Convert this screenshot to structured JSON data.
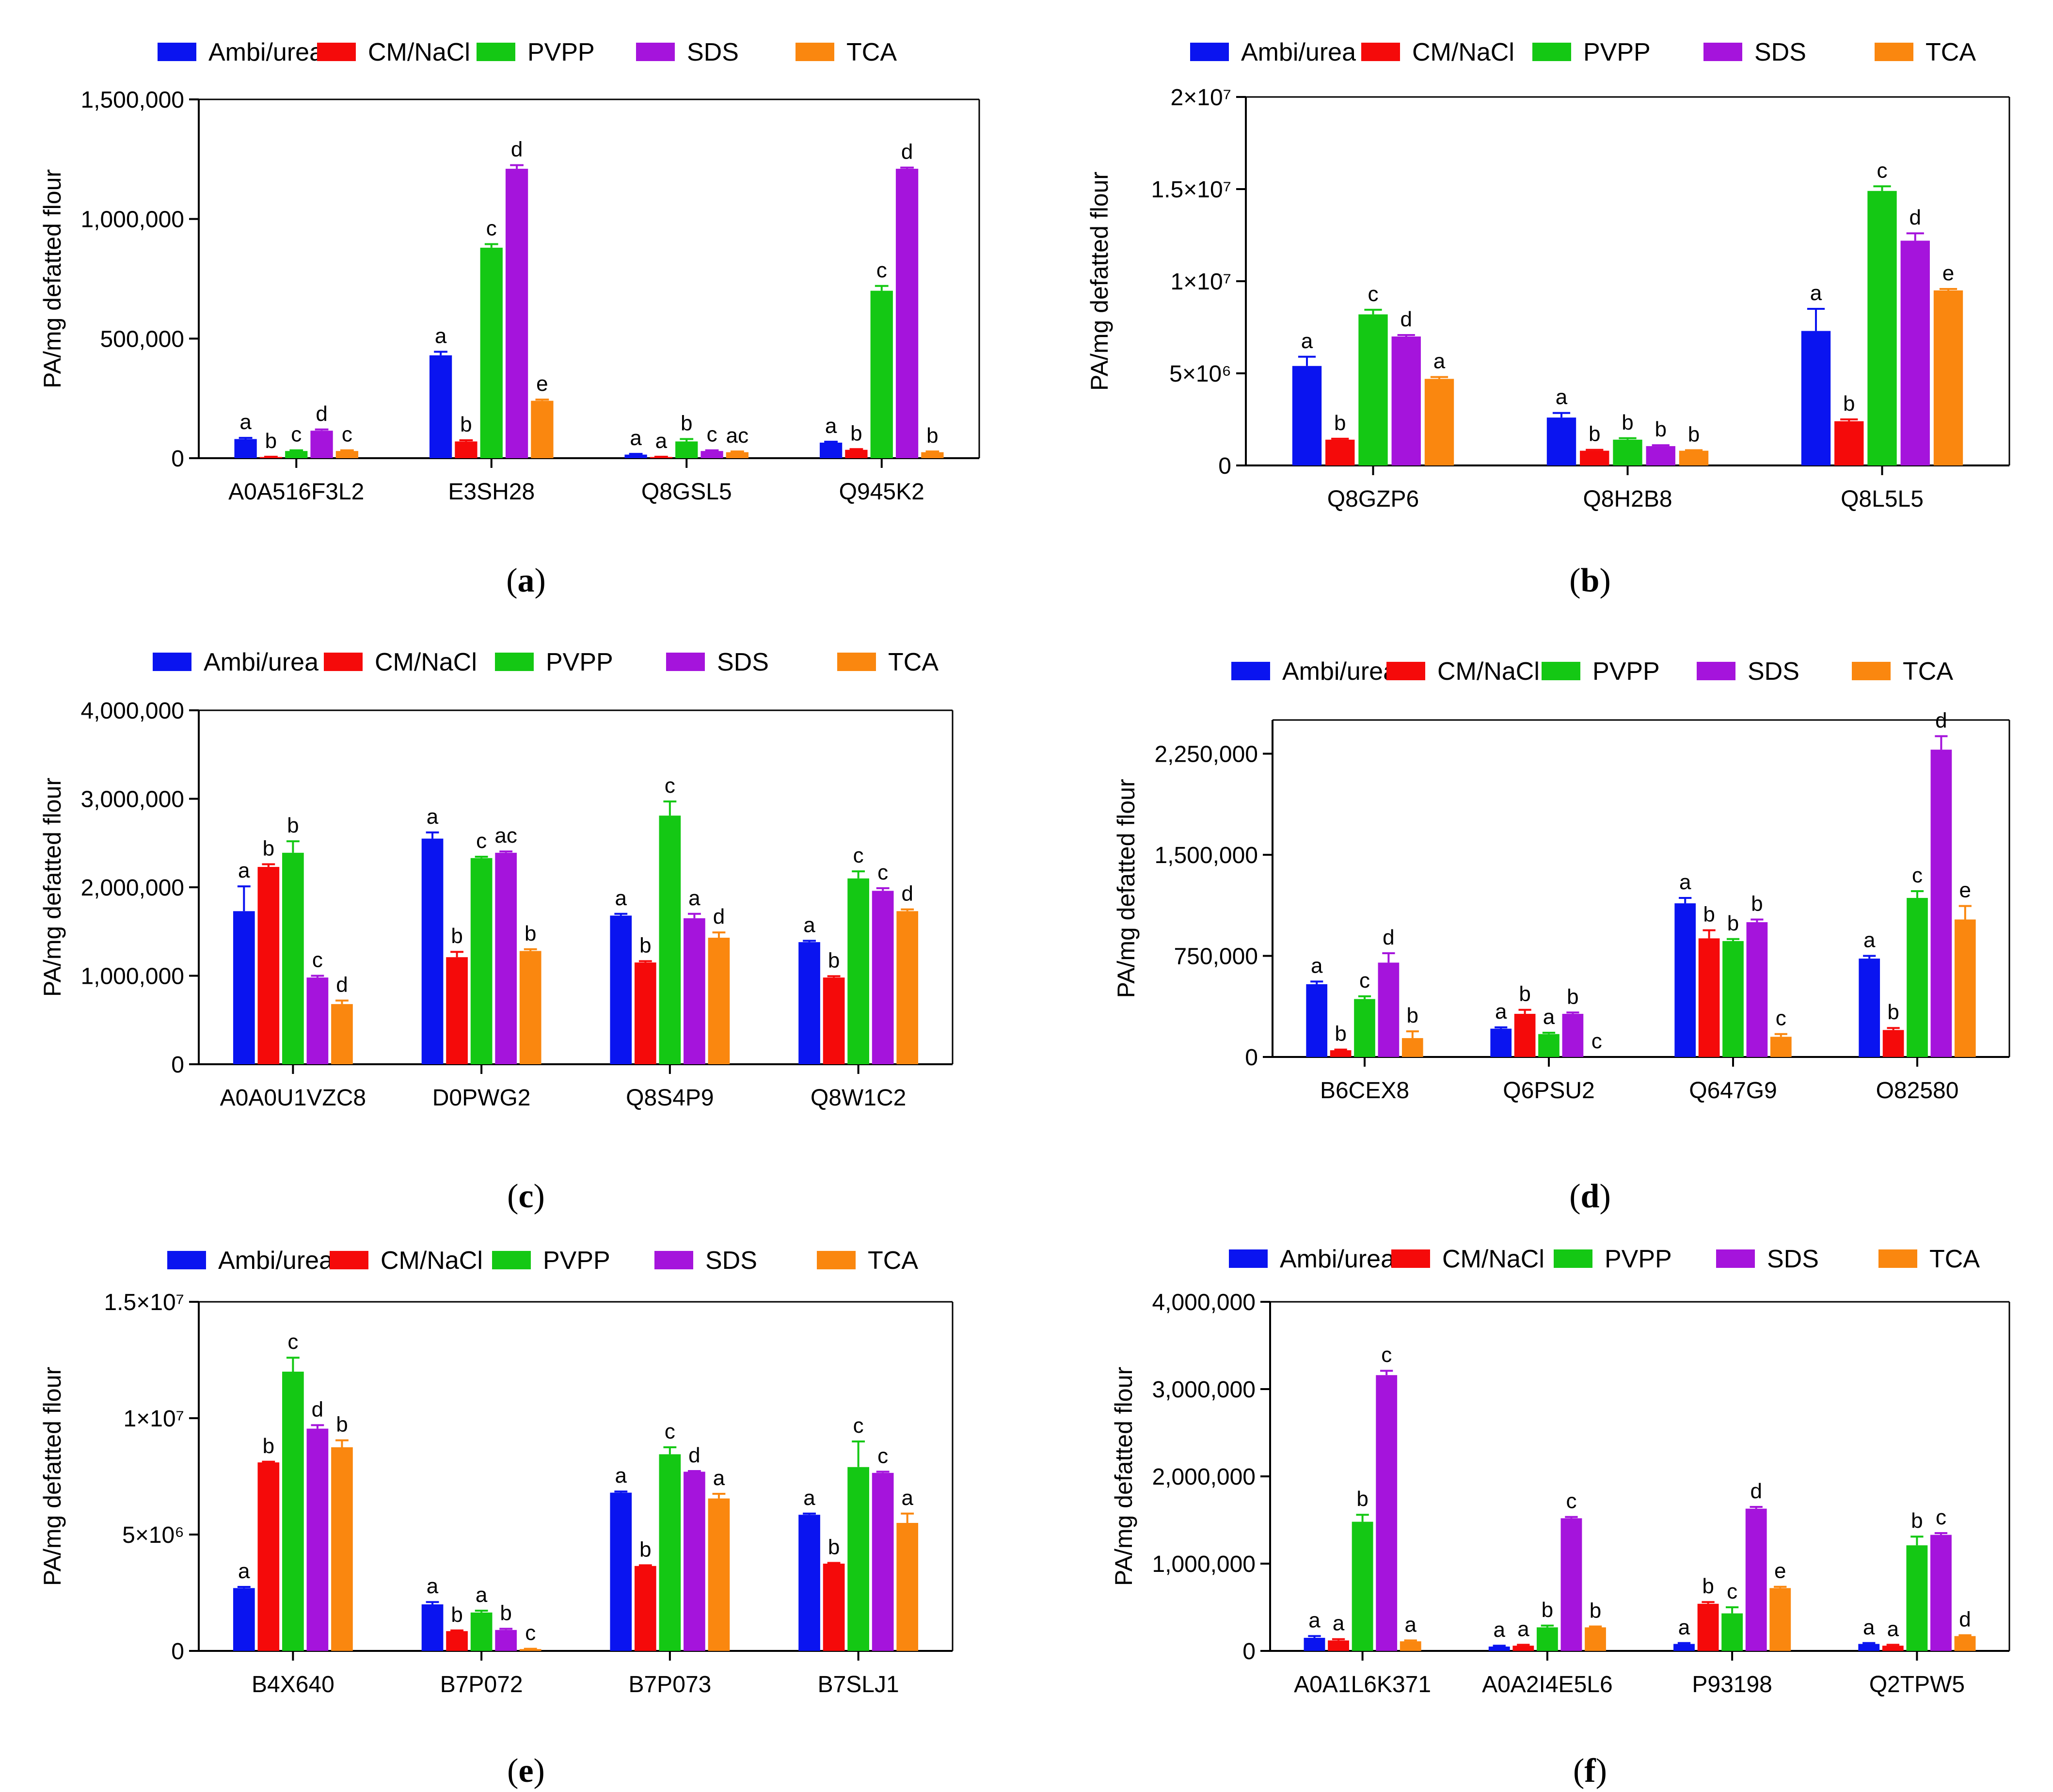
{
  "series_colors": {
    "Ambi/urea": "#0a14f0",
    "CM/NaCl": "#f50a0a",
    "PVPP": "#14c814",
    "SDS": "#a514dc",
    "TCA": "#fa870f"
  },
  "chart_data": [
    {
      "type": "bar",
      "panel": "a",
      "ylabel": "PA/mg defatted flour",
      "ylim": [
        0,
        1500000
      ],
      "yticks": [
        {
          "v": 0,
          "t": "0"
        },
        {
          "v": 500000,
          "t": "500,000"
        },
        {
          "v": 1000000,
          "t": "1,000,000"
        },
        {
          "v": 1500000,
          "t": "1,500,000"
        }
      ],
      "categories": [
        "A0A516F3L2",
        "E3SH28",
        "Q8GSL5",
        "Q945K2"
      ],
      "series": [
        {
          "name": "Ambi/urea",
          "values": [
            80000,
            430000,
            15000,
            65000
          ],
          "errors": [
            5000,
            15000,
            3000,
            4000
          ],
          "letters": [
            "a",
            "a",
            "a",
            "a"
          ]
        },
        {
          "name": "CM/NaCl",
          "values": [
            5000,
            70000,
            5000,
            35000
          ],
          "errors": [
            1000,
            5000,
            1000,
            3000
          ],
          "letters": [
            "b",
            "b",
            "a",
            "b"
          ]
        },
        {
          "name": "PVPP",
          "values": [
            30000,
            880000,
            70000,
            700000
          ],
          "errors": [
            3000,
            15000,
            10000,
            20000
          ],
          "letters": [
            "c",
            "c",
            "b",
            "c"
          ]
        },
        {
          "name": "SDS",
          "values": [
            115000,
            1210000,
            30000,
            1210000
          ],
          "errors": [
            5000,
            15000,
            3000,
            5000
          ],
          "letters": [
            "d",
            "d",
            "c",
            "d"
          ]
        },
        {
          "name": "TCA",
          "values": [
            30000,
            240000,
            25000,
            25000
          ],
          "errors": [
            3000,
            5000,
            3000,
            3000
          ],
          "letters": [
            "c",
            "e",
            "ac",
            "b"
          ]
        }
      ]
    },
    {
      "type": "bar",
      "panel": "b",
      "ylabel": "PA/mg defatted flour",
      "ylim": [
        0,
        20000000
      ],
      "yticks": [
        {
          "v": 0,
          "t": "0"
        },
        {
          "v": 5000000,
          "t": "5×10⁶"
        },
        {
          "v": 10000000,
          "t": "1×10⁷"
        },
        {
          "v": 15000000,
          "t": "1.5×10⁷"
        },
        {
          "v": 20000000,
          "t": "2×10⁷"
        }
      ],
      "categories": [
        "Q8GZP6",
        "Q8H2B8",
        "Q8L5L5"
      ],
      "series": [
        {
          "name": "Ambi/urea",
          "values": [
            5400000,
            2600000,
            7300000
          ],
          "errors": [
            500000,
            250000,
            1200000
          ],
          "letters": [
            "a",
            "a",
            "a"
          ]
        },
        {
          "name": "CM/NaCl",
          "values": [
            1400000,
            800000,
            2400000
          ],
          "errors": [
            50000,
            50000,
            100000
          ],
          "letters": [
            "b",
            "b",
            "b"
          ]
        },
        {
          "name": "PVPP",
          "values": [
            8200000,
            1400000,
            14900000
          ],
          "errors": [
            250000,
            80000,
            250000
          ],
          "letters": [
            "c",
            "b",
            "c"
          ]
        },
        {
          "name": "SDS",
          "values": [
            7000000,
            1050000,
            12200000
          ],
          "errors": [
            80000,
            50000,
            400000
          ],
          "letters": [
            "d",
            "b",
            "d"
          ]
        },
        {
          "name": "TCA",
          "values": [
            4700000,
            800000,
            9500000
          ],
          "errors": [
            100000,
            30000,
            80000
          ],
          "letters": [
            "a",
            "b",
            "e"
          ]
        }
      ]
    },
    {
      "type": "bar",
      "panel": "c",
      "ylabel": "PA/mg defatted flour",
      "ylim": [
        0,
        4000000
      ],
      "yticks": [
        {
          "v": 0,
          "t": "0"
        },
        {
          "v": 1000000,
          "t": "1,000,000"
        },
        {
          "v": 2000000,
          "t": "2,000,000"
        },
        {
          "v": 3000000,
          "t": "3,000,000"
        },
        {
          "v": 4000000,
          "t": "4,000,000"
        }
      ],
      "categories": [
        "A0A0U1VZC8",
        "D0PWG2",
        "Q8S4P9",
        "Q8W1C2"
      ],
      "series": [
        {
          "name": "Ambi/urea",
          "values": [
            1730000,
            2550000,
            1680000,
            1380000
          ],
          "errors": [
            280000,
            70000,
            20000,
            15000
          ],
          "letters": [
            "a",
            "a",
            "a",
            "a"
          ]
        },
        {
          "name": "CM/NaCl",
          "values": [
            2230000,
            1210000,
            1150000,
            980000
          ],
          "errors": [
            30000,
            60000,
            15000,
            15000
          ],
          "letters": [
            "b",
            "b",
            "b",
            "b"
          ]
        },
        {
          "name": "PVPP",
          "values": [
            2390000,
            2330000,
            2810000,
            2100000
          ],
          "errors": [
            130000,
            15000,
            160000,
            80000
          ],
          "letters": [
            "b",
            "c",
            "c",
            "c"
          ]
        },
        {
          "name": "SDS",
          "values": [
            980000,
            2390000,
            1650000,
            1960000
          ],
          "errors": [
            20000,
            15000,
            50000,
            30000
          ],
          "letters": [
            "c",
            "ac",
            "a",
            "c"
          ]
        },
        {
          "name": "TCA",
          "values": [
            680000,
            1280000,
            1430000,
            1730000
          ],
          "errors": [
            40000,
            20000,
            60000,
            20000
          ],
          "letters": [
            "d",
            "b",
            "d",
            "d"
          ]
        }
      ]
    },
    {
      "type": "bar",
      "panel": "d",
      "ylabel": "PA/mg defatted flour",
      "ylim": [
        0,
        2500000
      ],
      "yticks": [
        {
          "v": 0,
          "t": "0"
        },
        {
          "v": 750000,
          "t": "750,000"
        },
        {
          "v": 1500000,
          "t": "1,500,000"
        },
        {
          "v": 2250000,
          "t": "2,250,000"
        }
      ],
      "categories": [
        "B6CEX8",
        "Q6PSU2",
        "Q647G9",
        "O82580"
      ],
      "series": [
        {
          "name": "Ambi/urea",
          "values": [
            540000,
            210000,
            1140000,
            730000
          ],
          "errors": [
            20000,
            10000,
            40000,
            20000
          ],
          "letters": [
            "a",
            "a",
            "a",
            "a"
          ]
        },
        {
          "name": "CM/NaCl",
          "values": [
            50000,
            320000,
            880000,
            200000
          ],
          "errors": [
            5000,
            30000,
            60000,
            15000
          ],
          "letters": [
            "b",
            "b",
            "b",
            "b"
          ]
        },
        {
          "name": "PVPP",
          "values": [
            430000,
            170000,
            860000,
            1180000
          ],
          "errors": [
            20000,
            10000,
            15000,
            50000
          ],
          "letters": [
            "c",
            "a",
            "b",
            "c"
          ]
        },
        {
          "name": "SDS",
          "values": [
            700000,
            320000,
            1000000,
            2280000
          ],
          "errors": [
            70000,
            10000,
            20000,
            100000
          ],
          "letters": [
            "d",
            "b",
            "b",
            "d"
          ]
        },
        {
          "name": "TCA",
          "values": [
            140000,
            0,
            150000,
            1020000
          ],
          "errors": [
            50000,
            0,
            20000,
            100000
          ],
          "letters": [
            "b",
            "c",
            "c",
            "e"
          ]
        }
      ]
    },
    {
      "type": "bar",
      "panel": "e",
      "ylabel": "PA/mg defatted flour",
      "ylim": [
        0,
        15000000
      ],
      "yticks": [
        {
          "v": 0,
          "t": "0"
        },
        {
          "v": 5000000,
          "t": "5×10⁶"
        },
        {
          "v": 10000000,
          "t": "1×10⁷"
        },
        {
          "v": 15000000,
          "t": "1.5×10⁷"
        }
      ],
      "categories": [
        "B4X640",
        "B7P072",
        "B7P073",
        "B7SLJ1"
      ],
      "series": [
        {
          "name": "Ambi/urea",
          "values": [
            2700000,
            2000000,
            6800000,
            5850000
          ],
          "errors": [
            50000,
            100000,
            50000,
            50000
          ],
          "letters": [
            "a",
            "a",
            "a",
            "a"
          ]
        },
        {
          "name": "CM/NaCl",
          "values": [
            8100000,
            850000,
            3650000,
            3750000
          ],
          "errors": [
            30000,
            30000,
            30000,
            30000
          ],
          "letters": [
            "b",
            "b",
            "b",
            "b"
          ]
        },
        {
          "name": "PVPP",
          "values": [
            12000000,
            1650000,
            8450000,
            7900000
          ],
          "errors": [
            600000,
            80000,
            300000,
            1100000
          ],
          "letters": [
            "c",
            "a",
            "c",
            "c"
          ]
        },
        {
          "name": "SDS",
          "values": [
            9550000,
            900000,
            7700000,
            7650000
          ],
          "errors": [
            150000,
            50000,
            30000,
            50000
          ],
          "letters": [
            "d",
            "b",
            "d",
            "c"
          ]
        },
        {
          "name": "TCA",
          "values": [
            8750000,
            80000,
            6550000,
            5500000
          ],
          "errors": [
            300000,
            10000,
            200000,
            400000
          ],
          "letters": [
            "b",
            "c",
            "a",
            "a"
          ]
        }
      ]
    },
    {
      "type": "bar",
      "panel": "f",
      "ylabel": "PA/mg defatted flour",
      "ylim": [
        0,
        4000000
      ],
      "yticks": [
        {
          "v": 0,
          "t": "0"
        },
        {
          "v": 1000000,
          "t": "1,000,000"
        },
        {
          "v": 2000000,
          "t": "2,000,000"
        },
        {
          "v": 3000000,
          "t": "3,000,000"
        },
        {
          "v": 4000000,
          "t": "4,000,000"
        }
      ],
      "categories": [
        "A0A1L6K371",
        "A0A2I4E5L6",
        "P93198",
        "Q2TPW5"
      ],
      "series": [
        {
          "name": "Ambi/urea",
          "values": [
            150000,
            50000,
            80000,
            80000
          ],
          "errors": [
            20000,
            10000,
            10000,
            10000
          ],
          "letters": [
            "a",
            "a",
            "a",
            "a"
          ]
        },
        {
          "name": "CM/NaCl",
          "values": [
            120000,
            60000,
            540000,
            60000
          ],
          "errors": [
            15000,
            10000,
            20000,
            10000
          ],
          "letters": [
            "a",
            "a",
            "b",
            "a"
          ]
        },
        {
          "name": "PVPP",
          "values": [
            1480000,
            270000,
            430000,
            1210000
          ],
          "errors": [
            80000,
            20000,
            70000,
            100000
          ],
          "letters": [
            "b",
            "b",
            "c",
            "b"
          ]
        },
        {
          "name": "SDS",
          "values": [
            3160000,
            1520000,
            1630000,
            1330000
          ],
          "errors": [
            50000,
            15000,
            20000,
            20000
          ],
          "letters": [
            "c",
            "c",
            "d",
            "c"
          ]
        },
        {
          "name": "TCA",
          "values": [
            110000,
            270000,
            720000,
            170000
          ],
          "errors": [
            10000,
            10000,
            15000,
            10000
          ],
          "letters": [
            "a",
            "b",
            "e",
            "d"
          ]
        }
      ]
    }
  ]
}
